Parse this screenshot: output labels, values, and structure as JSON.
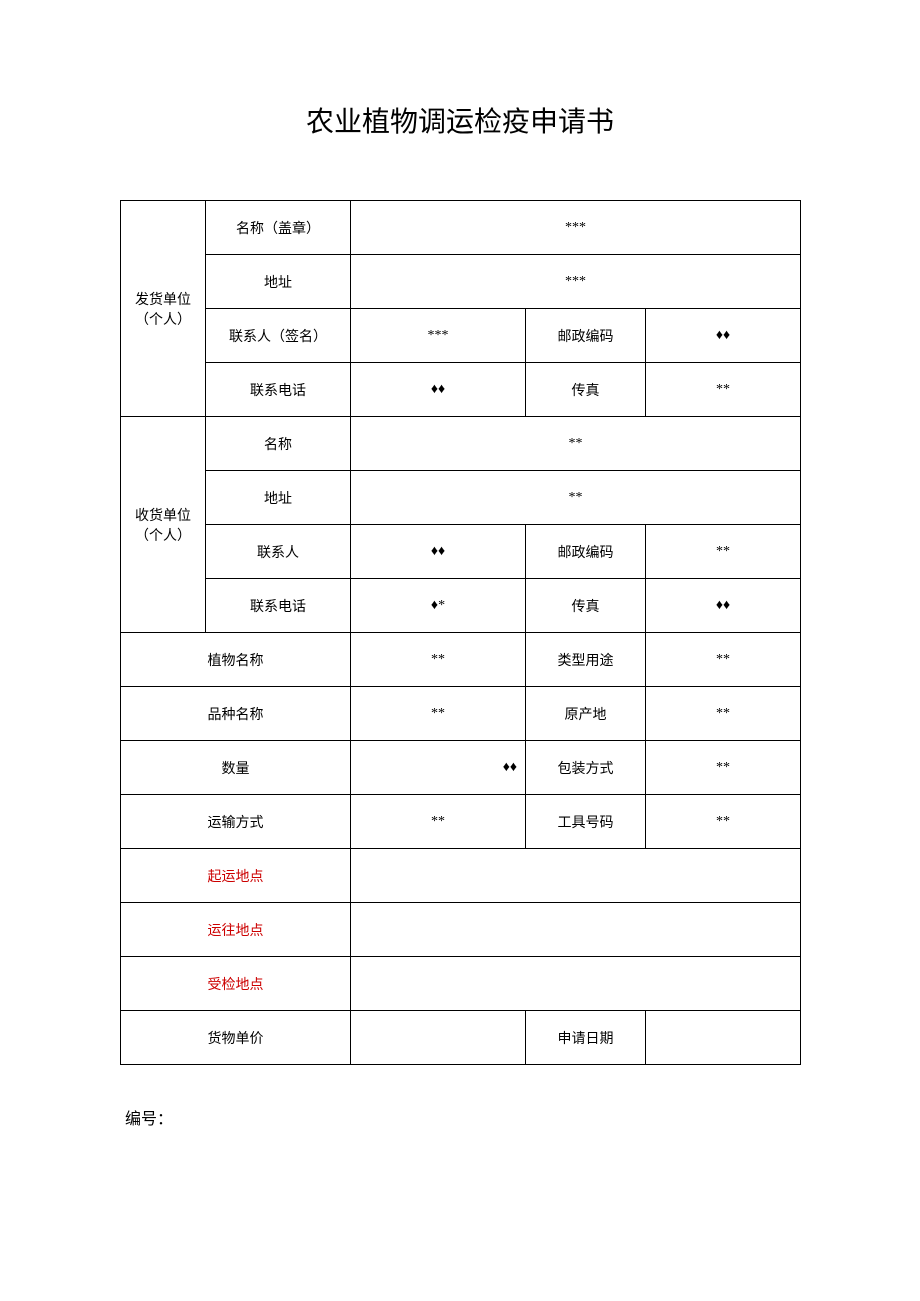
{
  "title": "农业植物调运检疫申请书",
  "colors": {
    "border": "#000000",
    "text": "#000000",
    "red": "#cc0000",
    "background": "#ffffff"
  },
  "sender": {
    "group_label": "发货单位（个人）",
    "name_label": "名称（盖章）",
    "name_value": "***",
    "address_label": "地址",
    "address_value": "***",
    "contact_label": "联系人（签名）",
    "contact_value": "***",
    "postal_label": "邮政编码",
    "postal_value": "♦♦",
    "phone_label": "联系电话",
    "phone_value": "♦♦",
    "fax_label": "传真",
    "fax_value": "**"
  },
  "receiver": {
    "group_label": "收货单位（个人）",
    "name_label": "名称",
    "name_value": "**",
    "address_label": "地址",
    "address_value": "**",
    "contact_label": "联系人",
    "contact_value": "♦♦",
    "postal_label": "邮政编码",
    "postal_value": "**",
    "phone_label": "联系电话",
    "phone_value": "♦*",
    "fax_label": "传真",
    "fax_value": "♦♦"
  },
  "plant": {
    "name_label": "植物名称",
    "name_value": "**",
    "type_label": "类型用途",
    "type_value": "**",
    "variety_label": "品种名称",
    "variety_value": "**",
    "origin_label": "原产地",
    "origin_value": "**",
    "quantity_label": "数量",
    "quantity_value": "♦♦",
    "packaging_label": "包装方式",
    "packaging_value": "**",
    "transport_label": "运输方式",
    "transport_value": "**",
    "tool_label": "工具号码",
    "tool_value": "**"
  },
  "locations": {
    "departure_label": "起运地点",
    "departure_value": "",
    "destination_label": "运往地点",
    "destination_value": "",
    "inspection_label": "受检地点",
    "inspection_value": ""
  },
  "footer_row": {
    "price_label": "货物单价",
    "price_value": "",
    "date_label": "申请日期",
    "date_value": ""
  },
  "serial_label": "编号："
}
